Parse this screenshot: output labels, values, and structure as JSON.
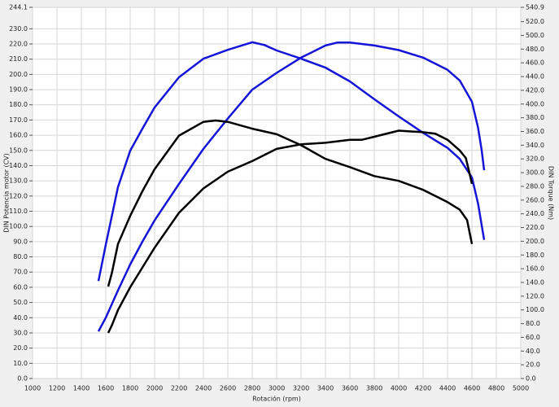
{
  "chart_data": {
    "type": "line",
    "x_label": "Rotación (rpm)",
    "y_label": "DIN Potencia motor (CV)",
    "y2_label": "DIN Torque (Nm)",
    "xlim": [
      1000,
      5000
    ],
    "xticks": [
      1000,
      1200,
      1400,
      1600,
      1800,
      2000,
      2200,
      2400,
      2600,
      2800,
      3000,
      3200,
      3400,
      3600,
      3800,
      4000,
      4200,
      4400,
      4600,
      4800,
      5000
    ],
    "ylim": [
      0,
      244.1
    ],
    "yticks": [
      {
        "value": 0,
        "label": "0.0"
      },
      {
        "value": 10,
        "label": "10.0"
      },
      {
        "value": 20,
        "label": "20.0"
      },
      {
        "value": 30,
        "label": "30.0"
      },
      {
        "value": 40,
        "label": "40.0"
      },
      {
        "value": 50,
        "label": "50.0"
      },
      {
        "value": 60,
        "label": "60.0"
      },
      {
        "value": 70,
        "label": "70.0"
      },
      {
        "value": 80,
        "label": "80.0"
      },
      {
        "value": 90,
        "label": "90.0"
      },
      {
        "value": 100,
        "label": "100.0"
      },
      {
        "value": 110,
        "label": "110.0"
      },
      {
        "value": 120,
        "label": "120.0"
      },
      {
        "value": 130,
        "label": "130.0"
      },
      {
        "value": 140,
        "label": "140.0"
      },
      {
        "value": 150,
        "label": "150.0"
      },
      {
        "value": 160,
        "label": "160.0"
      },
      {
        "value": 170,
        "label": "170.0"
      },
      {
        "value": 180,
        "label": "180.0"
      },
      {
        "value": 190,
        "label": "190.0"
      },
      {
        "value": 200,
        "label": "200.0"
      },
      {
        "value": 210,
        "label": "210.0"
      },
      {
        "value": 220,
        "label": "220.0"
      },
      {
        "value": 230,
        "label": "230.0"
      },
      244.1
    ],
    "y2lim": [
      0,
      540.9
    ],
    "y2ticks": [
      {
        "value": 0,
        "label": "0.0"
      },
      {
        "value": 20,
        "label": "20.0"
      },
      {
        "value": 40,
        "label": "40.0"
      },
      {
        "value": 60,
        "label": "60.0"
      },
      {
        "value": 80,
        "label": "80.0"
      },
      {
        "value": 100,
        "label": "100.0"
      },
      {
        "value": 120,
        "label": "120.0"
      },
      {
        "value": 140,
        "label": "140.0"
      },
      {
        "value": 160,
        "label": "160.0"
      },
      {
        "value": 180,
        "label": "180.0"
      },
      {
        "value": 200,
        "label": "200.0"
      },
      {
        "value": 220,
        "label": "220.0"
      },
      {
        "value": 240,
        "label": "240.0"
      },
      {
        "value": 260,
        "label": "260.0"
      },
      {
        "value": 280,
        "label": "280.0"
      },
      {
        "value": 300,
        "label": "300.0"
      },
      {
        "value": 320,
        "label": "320.0"
      },
      {
        "value": 340,
        "label": "340.0"
      },
      {
        "value": 360,
        "label": "360.0"
      },
      {
        "value": 380,
        "label": "380.0"
      },
      {
        "value": 400,
        "label": "400.0"
      },
      {
        "value": 420,
        "label": "420.0"
      },
      {
        "value": 440,
        "label": "440.0"
      },
      {
        "value": 460,
        "label": "460.0"
      },
      {
        "value": 480,
        "label": "480.0"
      },
      {
        "value": 500,
        "label": "500.0"
      },
      {
        "value": 520,
        "label": "520.0"
      },
      540.9
    ],
    "grid": true,
    "series": [
      {
        "color": "#1515d8",
        "axis": "y",
        "x": [
          1540,
          1600,
          1700,
          1800,
          1900,
          2000,
          2200,
          2400,
          2600,
          2800,
          3000,
          3200,
          3400,
          3500,
          3600,
          3800,
          4000,
          4200,
          4400,
          4500,
          4600,
          4650,
          4680,
          4700
        ],
        "values": [
          31,
          40,
          58,
          75,
          90,
          104,
          128,
          151,
          171,
          190,
          201,
          211,
          219,
          221,
          221,
          219,
          216,
          211,
          203,
          196,
          182,
          165,
          150,
          137
        ]
      },
      {
        "color": "#1515d8",
        "axis": "y2",
        "x": [
          1540,
          1600,
          1700,
          1800,
          1900,
          2000,
          2200,
          2400,
          2600,
          2800,
          2900,
          3000,
          3200,
          3400,
          3600,
          3800,
          4000,
          4200,
          4400,
          4500,
          4600,
          4650,
          4700
        ],
        "values": [
          142,
          195,
          279,
          332,
          364,
          395,
          439,
          466,
          479,
          490,
          486,
          478,
          466,
          453,
          433,
          407,
          382,
          358,
          336,
          320,
          293,
          255,
          202
        ]
      },
      {
        "color": "#000000",
        "axis": "y",
        "x": [
          1620,
          1650,
          1700,
          1800,
          1900,
          2000,
          2200,
          2400,
          2600,
          2800,
          3000,
          3200,
          3400,
          3600,
          3700,
          3800,
          4000,
          4200,
          4300,
          4400,
          4500,
          4550,
          4580,
          4600
        ],
        "values": [
          30,
          35,
          45,
          60,
          73,
          86,
          109,
          125,
          136,
          143,
          151,
          154,
          155,
          157,
          157,
          159,
          163,
          162,
          161,
          157,
          150,
          145,
          135,
          128
        ]
      },
      {
        "color": "#000000",
        "axis": "y2",
        "x": [
          1620,
          1650,
          1700,
          1800,
          1900,
          2000,
          2200,
          2400,
          2500,
          2600,
          2800,
          3000,
          3200,
          3400,
          3600,
          3800,
          4000,
          4200,
          4400,
          4500,
          4560,
          4600
        ],
        "values": [
          134,
          154,
          196,
          237,
          273,
          305,
          354,
          374,
          376,
          374,
          364,
          356,
          340,
          320,
          308,
          295,
          288,
          275,
          257,
          246,
          231,
          196
        ]
      }
    ]
  }
}
